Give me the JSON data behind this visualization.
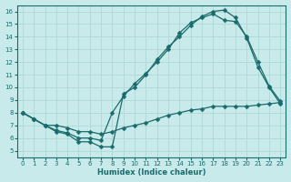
{
  "xlabel": "Humidex (Indice chaleur)",
  "bg_color": "#c8eaea",
  "grid_color": "#b0d8d8",
  "line_color": "#1a6b6b",
  "markersize": 2.5,
  "linewidth": 0.9,
  "xlim": [
    -0.5,
    23.5
  ],
  "ylim": [
    4.5,
    16.5
  ],
  "xticks": [
    0,
    1,
    2,
    3,
    4,
    5,
    6,
    7,
    8,
    9,
    10,
    11,
    12,
    13,
    14,
    15,
    16,
    17,
    18,
    19,
    20,
    21,
    22,
    23
  ],
  "yticks": [
    5,
    6,
    7,
    8,
    9,
    10,
    11,
    12,
    13,
    14,
    15,
    16
  ],
  "curve1_x": [
    0,
    1,
    2,
    3,
    4,
    5,
    6,
    7,
    8,
    9,
    10,
    11,
    12,
    13,
    14,
    15,
    16,
    17,
    18,
    19,
    20,
    21,
    22,
    23
  ],
  "curve1_y": [
    8.0,
    7.5,
    7.0,
    6.5,
    6.3,
    5.7,
    5.7,
    5.3,
    5.3,
    9.5,
    10.0,
    11.0,
    12.2,
    13.2,
    14.0,
    14.9,
    15.6,
    16.0,
    16.1,
    15.5,
    13.9,
    11.6,
    10.0,
    8.7
  ],
  "curve2_x": [
    0,
    1,
    2,
    3,
    4,
    5,
    6,
    7,
    8,
    9,
    10,
    11,
    12,
    13,
    14,
    15,
    16,
    17,
    18,
    19,
    20,
    21,
    22,
    23
  ],
  "curve2_y": [
    8.0,
    7.5,
    7.0,
    6.6,
    6.4,
    6.0,
    6.0,
    5.8,
    8.0,
    9.3,
    10.3,
    11.1,
    12.0,
    13.0,
    14.3,
    15.1,
    15.5,
    15.8,
    15.3,
    15.2,
    14.0,
    12.0,
    10.1,
    8.9
  ],
  "curve3_x": [
    0,
    1,
    2,
    3,
    4,
    5,
    6,
    7,
    8,
    9,
    10,
    11,
    12,
    13,
    14,
    15,
    16,
    17,
    18,
    19,
    20,
    21,
    22,
    23
  ],
  "curve3_y": [
    8.0,
    7.5,
    7.0,
    7.0,
    6.8,
    6.5,
    6.5,
    6.3,
    6.5,
    6.8,
    7.0,
    7.2,
    7.5,
    7.8,
    8.0,
    8.2,
    8.3,
    8.5,
    8.5,
    8.5,
    8.5,
    8.6,
    8.7,
    8.8
  ]
}
